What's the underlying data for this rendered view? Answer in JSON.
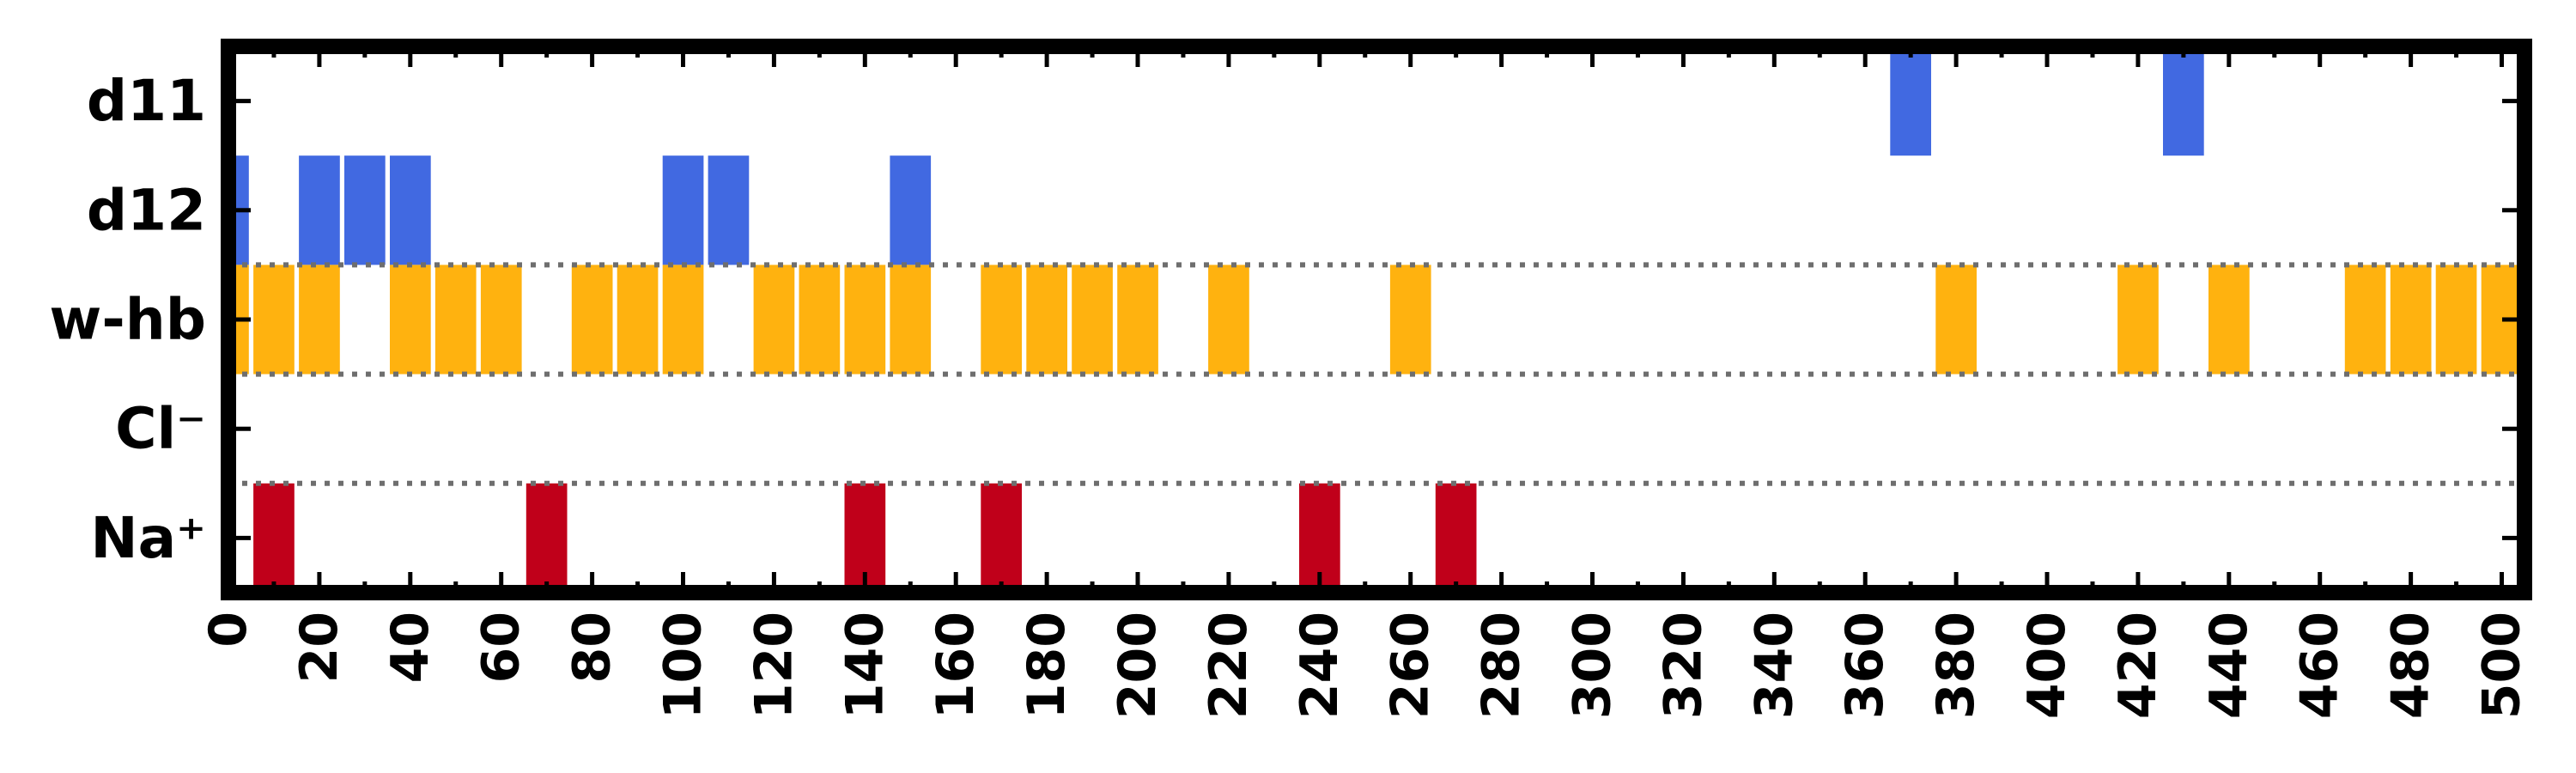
{
  "chart_data": {
    "type": "event-raster",
    "categories": [
      "d11",
      "d12",
      "w-hb",
      "Cl⁻",
      "Na⁺"
    ],
    "xlim": [
      0,
      505
    ],
    "bin_width": 9,
    "xticks_major": [
      0,
      20,
      40,
      60,
      80,
      100,
      120,
      140,
      160,
      180,
      200,
      220,
      240,
      260,
      280,
      300,
      320,
      340,
      360,
      380,
      400,
      420,
      440,
      460,
      480,
      500
    ],
    "xticks_minor": [
      10,
      30,
      50,
      70,
      90,
      110,
      130,
      150,
      170,
      190,
      210,
      230,
      250,
      270,
      290,
      310,
      330,
      350,
      370,
      390,
      410,
      430,
      450,
      470,
      490
    ],
    "grid": false,
    "separators": [
      {
        "between": [
          "d12",
          "w-hb"
        ],
        "style": "dotted"
      },
      {
        "between": [
          "w-hb",
          "Cl⁻"
        ],
        "style": "dotted"
      },
      {
        "between": [
          "Cl⁻",
          "Na⁺"
        ],
        "style": "dotted"
      }
    ],
    "series": [
      {
        "row": "d11",
        "color": "#4169E1",
        "events": [
          370,
          430
        ]
      },
      {
        "row": "d12",
        "color": "#4169E1",
        "events": [
          0,
          20,
          30,
          40,
          100,
          110,
          150
        ]
      },
      {
        "row": "w-hb",
        "color": "#FFB20F",
        "events": [
          0,
          10,
          20,
          40,
          50,
          60,
          80,
          90,
          100,
          120,
          130,
          140,
          150,
          170,
          180,
          190,
          200,
          220,
          260,
          380,
          420,
          440,
          470,
          480,
          490,
          500
        ]
      },
      {
        "row": "Cl⁻",
        "color": "#C0001A",
        "events": []
      },
      {
        "row": "Na⁺",
        "color": "#C0001A",
        "events": [
          10,
          70,
          140,
          170,
          240,
          270
        ]
      }
    ]
  }
}
